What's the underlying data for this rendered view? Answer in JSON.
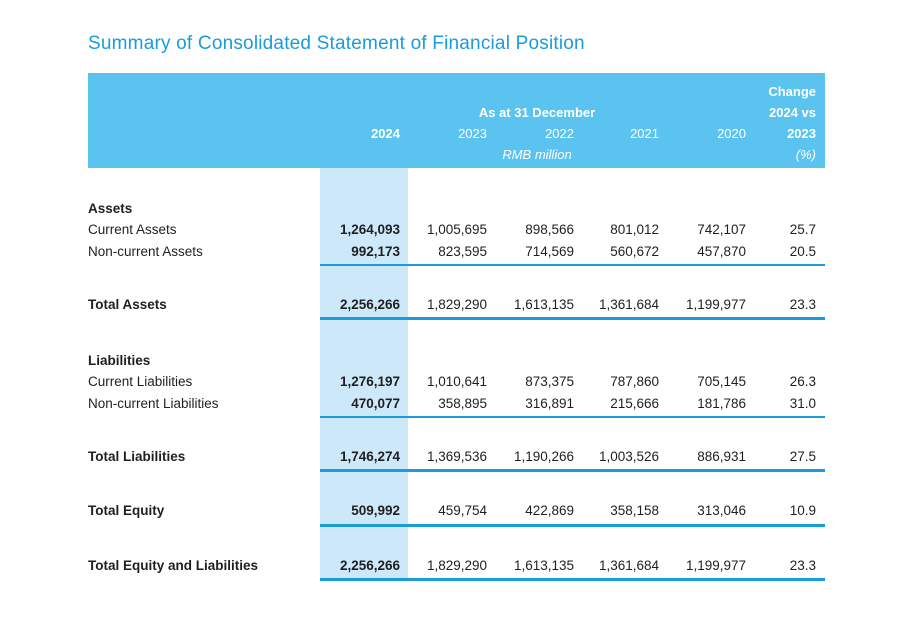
{
  "title": "Summary of Consolidated Statement of Financial Position",
  "colors": {
    "header_bg": "#5bc3ef",
    "highlight_bg": "#cde8f8",
    "accent": "#1a9cd8",
    "rule": "#1a9cd8",
    "text": "#1f1f21"
  },
  "table": {
    "header": {
      "change_label": "Change",
      "period_label": "As at 31 December",
      "change_versus": "2024 vs",
      "years": [
        "2024",
        "2023",
        "2022",
        "2021",
        "2020"
      ],
      "change_year": "2023",
      "unit": "RMB million",
      "change_unit": "(%)"
    },
    "columns": [
      "label",
      "2024",
      "2023",
      "2022",
      "2021",
      "2020",
      "change_pct"
    ],
    "rows": [
      {
        "label": "Assets",
        "style": "section",
        "bold": true,
        "values": [
          "",
          "",
          "",
          "",
          "",
          ""
        ],
        "rule": "none"
      },
      {
        "label": "Current Assets",
        "style": "item",
        "bold": false,
        "values": [
          "1,264,093",
          "1,005,695",
          "898,566",
          "801,012",
          "742,107",
          "25.7"
        ],
        "rule": "none"
      },
      {
        "label": "Non-current Assets",
        "style": "item",
        "bold": false,
        "values": [
          "992,173",
          "823,595",
          "714,569",
          "560,672",
          "457,870",
          "20.5"
        ],
        "rule": "thin"
      },
      {
        "label": "Total Assets",
        "style": "total",
        "bold": true,
        "values": [
          "2,256,266",
          "1,829,290",
          "1,613,135",
          "1,361,684",
          "1,199,977",
          "23.3"
        ],
        "rule": "thick"
      },
      {
        "label": "Liabilities",
        "style": "section",
        "bold": true,
        "values": [
          "",
          "",
          "",
          "",
          "",
          ""
        ],
        "rule": "none"
      },
      {
        "label": "Current Liabilities",
        "style": "item",
        "bold": false,
        "values": [
          "1,276,197",
          "1,010,641",
          "873,375",
          "787,860",
          "705,145",
          "26.3"
        ],
        "rule": "none"
      },
      {
        "label": "Non-current Liabilities",
        "style": "item",
        "bold": false,
        "values": [
          "470,077",
          "358,895",
          "316,891",
          "215,666",
          "181,786",
          "31.0"
        ],
        "rule": "thin"
      },
      {
        "label": "Total Liabilities",
        "style": "total",
        "bold": true,
        "values": [
          "1,746,274",
          "1,369,536",
          "1,190,266",
          "1,003,526",
          "886,931",
          "27.5"
        ],
        "rule": "thick"
      },
      {
        "label": "Total Equity",
        "style": "total",
        "bold": true,
        "values": [
          "509,992",
          "459,754",
          "422,869",
          "358,158",
          "313,046",
          "10.9"
        ],
        "rule": "thick"
      },
      {
        "label": "Total Equity and Liabilities",
        "style": "total",
        "bold": true,
        "values": [
          "2,256,266",
          "1,829,290",
          "1,613,135",
          "1,361,684",
          "1,199,977",
          "23.3"
        ],
        "rule": "thick"
      }
    ]
  }
}
